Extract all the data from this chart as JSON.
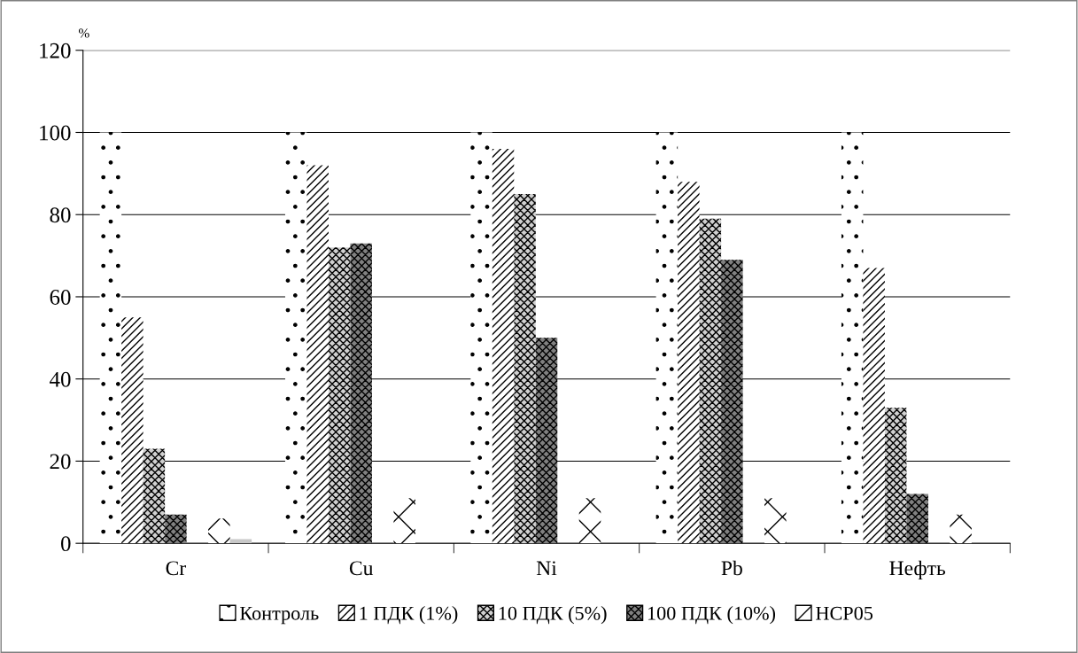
{
  "chart_data": {
    "type": "bar",
    "ylabel": "%",
    "categories": [
      "Cr",
      "Cu",
      "Ni",
      "Pb",
      "Нефть"
    ],
    "series": [
      {
        "name": "Контроль",
        "color": "#ffffff",
        "values": [
          100,
          100,
          100,
          100,
          100
        ]
      },
      {
        "name": "1 ПДК (1%)",
        "color": "#ffffff",
        "values": [
          55,
          92,
          96,
          88,
          67
        ]
      },
      {
        "name": "10 ПДК (5%)",
        "color": "#d0d0d0",
        "values": [
          23,
          72,
          85,
          79,
          33
        ]
      },
      {
        "name": "100 ПДК (10%)",
        "color": "#808080",
        "values": [
          7,
          73,
          50,
          69,
          12
        ]
      },
      {
        "color": "#ffffff",
        "values": [
          null,
          null,
          null,
          null,
          null
        ]
      },
      {
        "name": "НСР05",
        "color": "#ffffff",
        "values": [
          6,
          11,
          11,
          11,
          7
        ]
      },
      {
        "color": "#c8c8c8",
        "values": [
          1,
          null,
          null,
          null,
          null
        ]
      }
    ],
    "ylim": [
      0,
      120
    ],
    "yticks": [
      0,
      20,
      40,
      60,
      80,
      100,
      120
    ],
    "grid": "y",
    "legend": "bottom"
  }
}
